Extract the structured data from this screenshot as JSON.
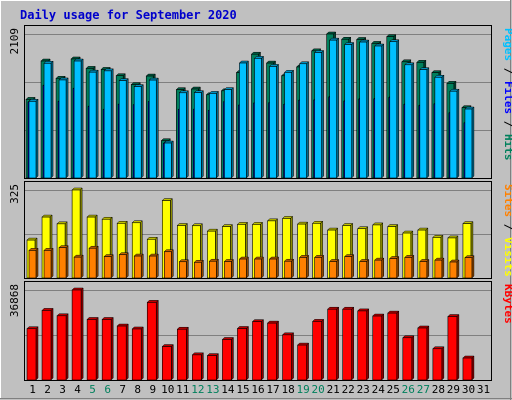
{
  "chart_data": {
    "type": "bar",
    "title": "Daily usage for September 2020",
    "x": [
      "1",
      "2",
      "3",
      "4",
      "5",
      "6",
      "7",
      "8",
      "9",
      "10",
      "11",
      "12",
      "13",
      "14",
      "15",
      "16",
      "17",
      "18",
      "19",
      "20",
      "21",
      "22",
      "23",
      "24",
      "25",
      "26",
      "27",
      "28",
      "29",
      "30",
      "31"
    ],
    "weekend_days": [
      "5",
      "6",
      "12",
      "13",
      "19",
      "20",
      "26",
      "27"
    ],
    "colors": {
      "background": "#c0c0c0",
      "hits": "#00805c",
      "files": "#0000ff",
      "pages": "#00c0ff",
      "visits": "#ff8000",
      "sites": "#ffff00",
      "kbytes": "#ff0000",
      "weekday_label": "#000000",
      "weekend_label": "#00805c"
    },
    "panels": [
      {
        "name": "hits-files-pages",
        "max_label": "2109",
        "ylim": [
          0,
          2109
        ],
        "legend": [
          {
            "text": "Pages",
            "color": "#00c0ff"
          },
          {
            "text": " / ",
            "color": "#000000"
          },
          {
            "text": "Files",
            "color": "#0000ff"
          },
          {
            "text": " / ",
            "color": "#000000"
          },
          {
            "text": "Hits",
            "color": "#00805c"
          }
        ],
        "series": [
          {
            "name": "Hits",
            "values": [
              1151,
              1713,
              1460,
              1743,
              1605,
              1590,
              1498,
              1368,
              1493,
              546,
              1294,
              1303,
              1219,
              1277,
              1544,
              1813,
              1683,
              1497,
              1626,
              1862,
              2109,
              2032,
              2029,
              1971,
              2071,
              1702,
              1694,
              1543,
              1386,
              1030,
              0
            ]
          },
          {
            "name": "Files",
            "values": [
              1113,
              1354,
              1121,
              1309,
              1047,
              1001,
              1079,
              1071,
              1117,
              507,
              1003,
              1005,
              988,
              1115,
              1066,
              1096,
              1100,
              1077,
              1138,
              1141,
              1186,
              1125,
              1156,
              1159,
              1181,
              1078,
              1061,
              1084,
              953,
              806,
              0
            ]
          },
          {
            "name": "Pages",
            "values": [
              1123,
              1680,
              1436,
              1713,
              1550,
              1569,
              1427,
              1339,
              1434,
              512,
              1248,
              1250,
              1239,
              1295,
              1684,
              1752,
              1634,
              1547,
              1673,
              1838,
              2019,
              1955,
              1991,
              1933,
              1996,
              1658,
              1587,
              1475,
              1271,
              1010,
              0
            ]
          }
        ]
      },
      {
        "name": "visits-sites",
        "max_label": "325",
        "ylim": [
          0,
          325
        ],
        "legend": [
          {
            "text": "Sites",
            "color": "#ff8000"
          },
          {
            "text": " / ",
            "color": "#000000"
          },
          {
            "text": "Visits",
            "color": "#ffff00"
          }
        ],
        "series": [
          {
            "name": "Visits",
            "values": [
              140,
              225,
              200,
              325,
              225,
              217,
              202,
              204,
              143,
              286,
              194,
              193,
              173,
              190,
              198,
              198,
              211,
              220,
              199,
              202,
              177,
              194,
              182,
              196,
              190,
              166,
              177,
              150,
              148,
              201,
              0
            ]
          },
          {
            "name": "Sites",
            "values": [
              102,
              102,
              112,
              77,
              110,
              79,
              86,
              81,
              81,
              97,
              60,
              58,
              62,
              61,
              70,
              70,
              70,
              62,
              76,
              76,
              61,
              79,
              61,
              66,
              72,
              76,
              61,
              66,
              59,
              75,
              0
            ]
          }
        ]
      },
      {
        "name": "kbytes",
        "max_label": "36868",
        "ylim": [
          0,
          36868
        ],
        "legend": [
          {
            "text": "KBytes",
            "color": "#ff0000"
          }
        ],
        "series": [
          {
            "name": "KBytes",
            "values": [
              21000,
              28500,
              26300,
              36868,
              24800,
              24800,
              22100,
              20900,
              31800,
              13700,
              20800,
              10300,
              10000,
              16600,
              21100,
              23900,
              23300,
              18500,
              14300,
              24000,
              29000,
              29000,
              28300,
              26200,
              27400,
              17300,
              21300,
              12800,
              26000,
              9000,
              0
            ]
          }
        ]
      }
    ]
  }
}
